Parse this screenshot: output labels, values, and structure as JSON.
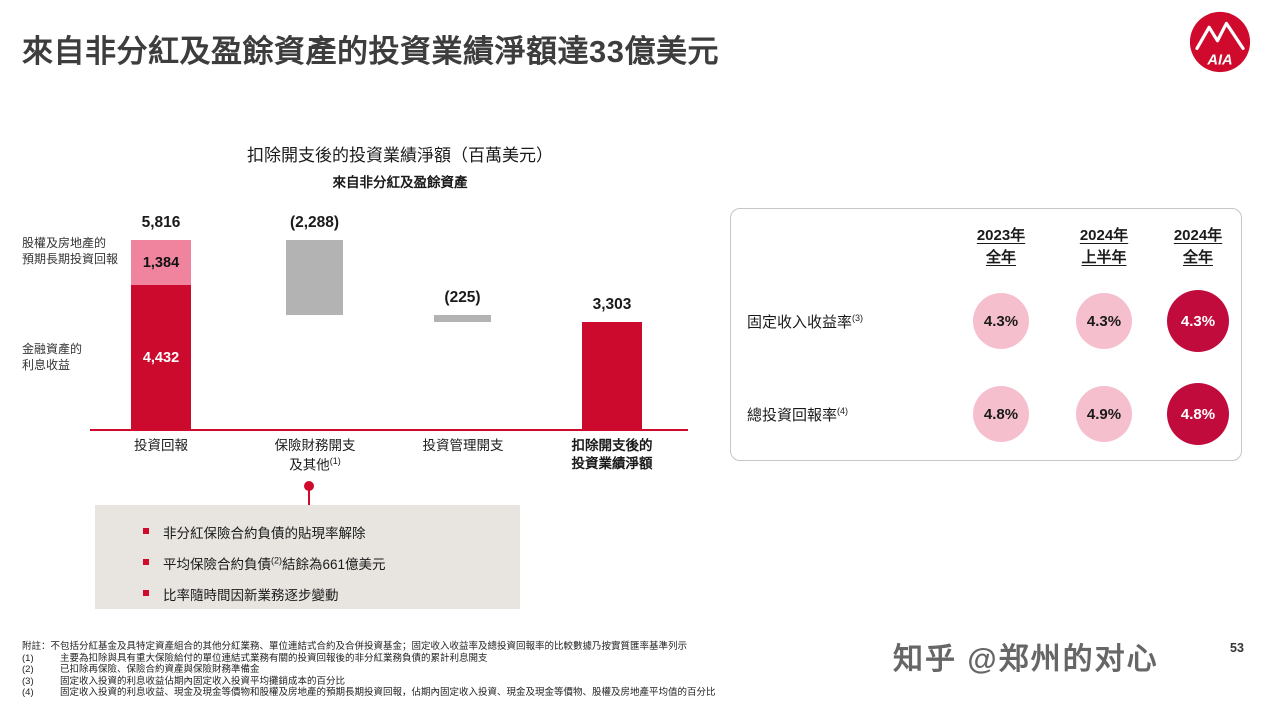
{
  "slide": {
    "title": "來自非分紅及盈餘資產的投資業績淨額達33億美元",
    "page_number": "53",
    "watermark": "知乎 @郑州的对心",
    "logo_text": "AIA"
  },
  "chart_data": {
    "type": "bar",
    "variant": "waterfall",
    "title": "扣除開支後的投資業績淨額（百萬美元）",
    "subtitle": "來自非分紅及盈餘資產",
    "unit": "百萬美元",
    "axis_max": 5816,
    "categories": [
      "投資回報",
      "保險財務開支及其他(1)",
      "投資管理開支",
      "扣除開支後的投資業績淨額"
    ],
    "bars": [
      {
        "name": "投資回報",
        "total": 5816,
        "total_display": "5,816",
        "start": 0,
        "end": 5816,
        "segments": [
          {
            "name": "股權及房地產的預期長期投資回報",
            "value": 1384,
            "display": "1,384",
            "color": "#f0849f"
          },
          {
            "name": "金融資產的利息收益",
            "value": 4432,
            "display": "4,432",
            "color": "#cc0a2e"
          }
        ]
      },
      {
        "name": "保險財務開支及其他(1)",
        "value": -2288,
        "display": "(2,288)",
        "start": 5816,
        "end": 3528,
        "color": "#b3b3b3"
      },
      {
        "name": "投資管理開支",
        "value": -225,
        "display": "(225)",
        "start": 3528,
        "end": 3303,
        "color": "#b3b3b3"
      },
      {
        "name": "扣除開支後的投資業績淨額",
        "value": 3303,
        "display": "3,303",
        "start": 0,
        "end": 3303,
        "color": "#cc0a2e"
      }
    ],
    "side_labels": [
      "股權及房地產的\n預期長期投資回報",
      "金融資產的\n利息收益"
    ]
  },
  "x_labels": [
    {
      "line1": "投資回報",
      "line2": "",
      "sup": ""
    },
    {
      "line1": "保險財務開支",
      "line2": "及其他",
      "sup": "(1)"
    },
    {
      "line1": "投資管理開支",
      "line2": "",
      "sup": ""
    },
    {
      "line1": "扣除開支後的",
      "line2": "投資業績淨額",
      "sup": ""
    }
  ],
  "callout": {
    "bullets": [
      {
        "pre": "非分紅保險合約負債的貼現率解除",
        "sup": "",
        "post": ""
      },
      {
        "pre": "平均保險合約負債",
        "sup": "(2)",
        "post": "結餘為661億美元"
      },
      {
        "pre": "比率隨時間因新業務逐步變動",
        "sup": "",
        "post": ""
      }
    ]
  },
  "panel": {
    "columns": [
      {
        "line1": "2023年",
        "line2": "全年"
      },
      {
        "line1": "2024年",
        "line2": "上半年"
      },
      {
        "line1": "2024年",
        "line2": "全年"
      }
    ],
    "rows": [
      {
        "label": "固定收入收益率",
        "sup": "(3)",
        "values": [
          "4.3%",
          "4.3%",
          "4.3%"
        ]
      },
      {
        "label": "總投資回報率",
        "sup": "(4)",
        "values": [
          "4.8%",
          "4.9%",
          "4.8%"
        ]
      }
    ],
    "colors": {
      "light": "#f6bfce",
      "dark": "#c20b3d"
    }
  },
  "footnotes": {
    "note": "附註：不包括分紅基金及具特定資產組合的其他分紅業務、單位連結式合約及合併投資基金；固定收入收益率及總投資回報率的比較數據乃按實質匯率基準列示",
    "items": [
      {
        "marker": "(1)",
        "text": "主要為扣除與具有重大保險給付的單位連結式業務有關的投資回報後的非分紅業務負債的累計利息開支"
      },
      {
        "marker": "(2)",
        "text": "已扣除再保險、保險合約資產與保險財務準備金"
      },
      {
        "marker": "(3)",
        "text": "固定收入投資的利息收益佔期內固定收入投資平均攤銷成本的百分比"
      },
      {
        "marker": "(4)",
        "text": "固定收入投資的利息收益、現金及現金等價物和股權及房地產的預期長期投資回報，佔期內固定收入投資、現金及現金等價物、股權及房地產平均值的百分比"
      }
    ]
  }
}
